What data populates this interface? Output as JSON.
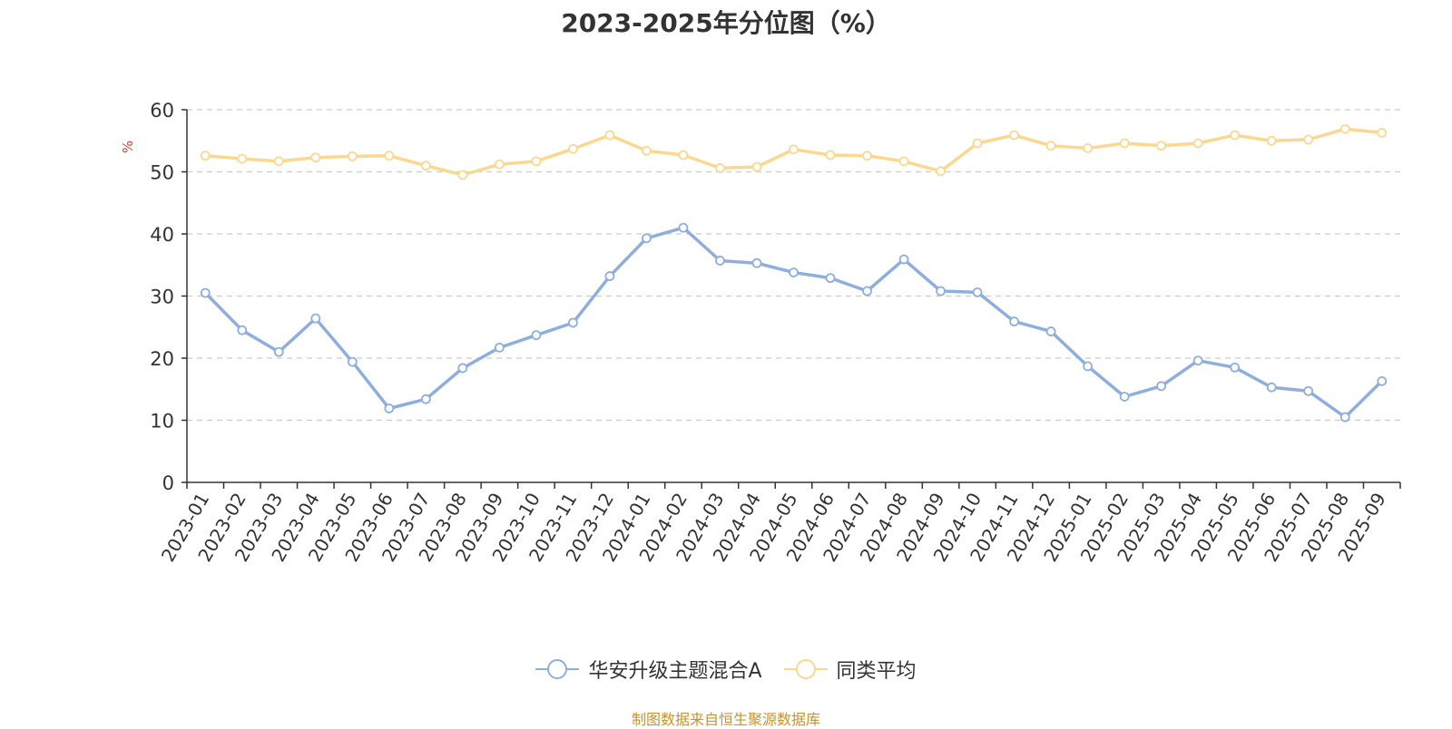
{
  "chart_data": {
    "type": "line",
    "title": "2023-2025年分位图（%）",
    "ylabel": "%",
    "ylim": [
      0,
      60
    ],
    "yticks": [
      0,
      10,
      20,
      30,
      40,
      50,
      60
    ],
    "grid": true,
    "legend_position": "bottom",
    "categories": [
      "2023-01",
      "2023-02",
      "2023-03",
      "2023-04",
      "2023-05",
      "2023-06",
      "2023-07",
      "2023-08",
      "2023-09",
      "2023-10",
      "2023-11",
      "2023-12",
      "2024-01",
      "2024-02",
      "2024-03",
      "2024-04",
      "2024-05",
      "2024-06",
      "2024-07",
      "2024-08",
      "2024-09",
      "2024-10",
      "2024-11",
      "2024-12",
      "2025-01",
      "2025-02",
      "2025-03",
      "2025-04",
      "2025-05",
      "2025-06",
      "2025-07",
      "2025-08",
      "2025-09"
    ],
    "series": [
      {
        "name": "华安升级主题混合A",
        "color": "#8eaedb",
        "values": [
          30.5,
          24.5,
          21.0,
          26.4,
          19.4,
          11.9,
          13.4,
          18.4,
          21.7,
          23.7,
          25.7,
          33.2,
          39.3,
          41.0,
          35.7,
          35.3,
          33.8,
          32.9,
          30.8,
          35.9,
          30.8,
          30.6,
          25.9,
          24.3,
          18.7,
          13.8,
          15.5,
          19.6,
          18.5,
          15.3,
          14.7,
          10.5,
          16.3
        ]
      },
      {
        "name": "同类平均",
        "color": "#fad88f",
        "values": [
          52.6,
          52.1,
          51.7,
          52.3,
          52.5,
          52.6,
          51.0,
          49.5,
          51.2,
          51.7,
          53.7,
          55.9,
          53.4,
          52.7,
          50.6,
          50.8,
          53.6,
          52.7,
          52.6,
          51.7,
          50.1,
          54.6,
          55.9,
          54.2,
          53.8,
          54.6,
          54.2,
          54.6,
          55.9,
          55.0,
          55.2,
          56.9,
          56.3
        ]
      }
    ]
  },
  "source_note": "制图数据来自恒生聚源数据库"
}
